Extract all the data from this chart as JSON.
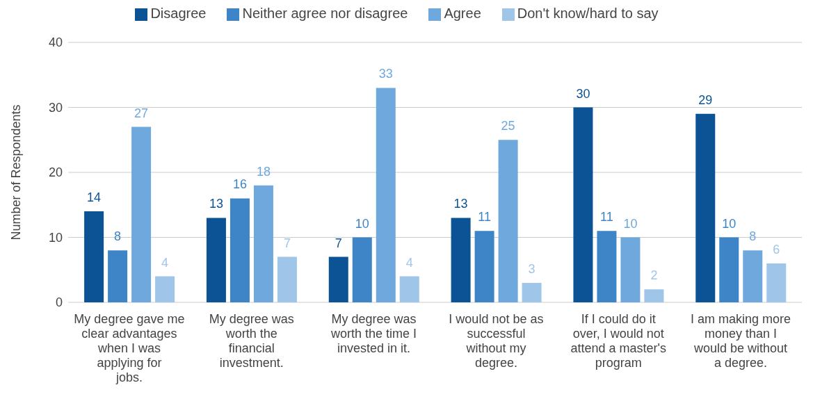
{
  "chart_data": {
    "type": "bar",
    "ylabel": "Number of Respondents",
    "categories": [
      "My degree gave me clear advantages when I was applying for jobs.",
      "My degree was worth the financial investment.",
      "My degree was worth the time I invested in it.",
      "I would not be as successful without my degree.",
      "If I could do it over, I would not attend a master's program",
      "I am making more money than I would be without a degree."
    ],
    "series": [
      {
        "name": "Disagree",
        "color": "#0b5394",
        "values": [
          14,
          13,
          7,
          13,
          30,
          29
        ]
      },
      {
        "name": "Neither agree nor disagree",
        "color": "#3d85c6",
        "values": [
          8,
          16,
          10,
          11,
          11,
          10
        ]
      },
      {
        "name": "Agree",
        "color": "#6fa8dc",
        "values": [
          27,
          18,
          33,
          25,
          10,
          8
        ]
      },
      {
        "name": "Don't know/hard to say",
        "color": "#9fc5e8",
        "values": [
          4,
          7,
          4,
          3,
          2,
          6
        ]
      }
    ],
    "ylim": [
      0,
      40
    ],
    "yticks": [
      0,
      10,
      20,
      30,
      40
    ],
    "grid": "y",
    "legend": "top",
    "data_labels": true
  }
}
